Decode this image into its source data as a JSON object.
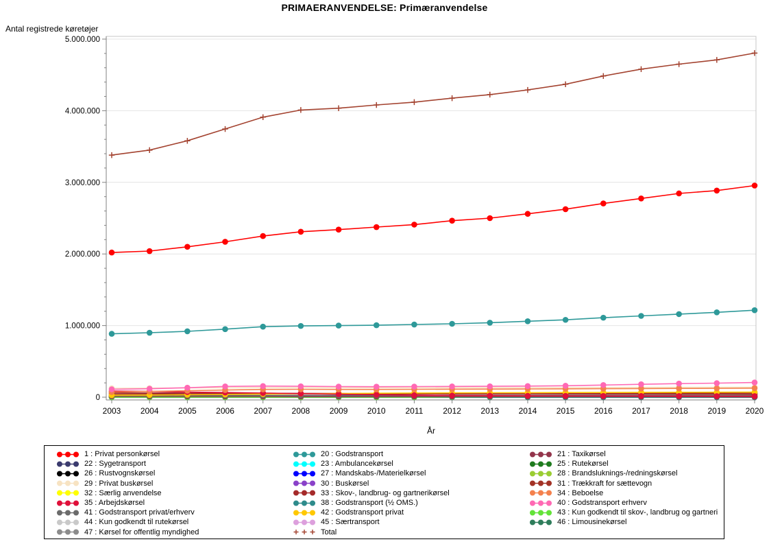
{
  "window": {
    "title": "PRIMAERANVENDELSE: Primæranvendelse"
  },
  "chart_data": {
    "type": "line",
    "title": "PRIMAERANVENDELSE: Primæranvendelse",
    "xlabel": "År",
    "ylabel": "Antal registrede køretøjer",
    "x": [
      2003,
      2004,
      2005,
      2006,
      2007,
      2008,
      2009,
      2010,
      2011,
      2012,
      2013,
      2014,
      2015,
      2016,
      2017,
      2018,
      2019,
      2020
    ],
    "x_tick_labels": [
      "2003",
      "2004",
      "2005",
      "2006",
      "2007",
      "2008",
      "2009",
      "2010",
      "2011",
      "2012",
      "2013",
      "2014",
      "2015",
      "2016",
      "2017",
      "2018",
      "2019",
      "2020"
    ],
    "ylim": [
      0,
      5000000
    ],
    "y_ticks": [
      {
        "value": 0,
        "label": "0"
      },
      {
        "value": 1000000,
        "label": "1.000.000"
      },
      {
        "value": 2000000,
        "label": "2.000.000"
      },
      {
        "value": 3000000,
        "label": "3.000.000"
      },
      {
        "value": 4000000,
        "label": "4.000.000"
      },
      {
        "value": 5000000,
        "label": "5.000.000"
      }
    ],
    "grid": "horizontal-major",
    "legend_position": "bottom-box",
    "series": [
      {
        "id": "22",
        "legend": "22 : Sygetransport",
        "color": "#3B3B6E",
        "marker": "dot",
        "values": [
          2000,
          2000,
          2000,
          2000,
          2000,
          2000,
          2000,
          2000,
          2000,
          2000,
          2000,
          2000,
          2000,
          2000,
          2000,
          2000,
          2000,
          2000
        ]
      },
      {
        "id": "26",
        "legend": "26 : Rustvognskørsel",
        "color": "#000000",
        "marker": "dot",
        "values": [
          1000,
          1000,
          1000,
          1000,
          1000,
          1000,
          1000,
          1000,
          1000,
          1000,
          1000,
          1000,
          1000,
          1000,
          1000,
          1000,
          1000,
          1000
        ]
      },
      {
        "id": "44",
        "legend": "44 : Kun godkendt til rutekørsel",
        "color": "#C9C9C9",
        "marker": "dot",
        "values": [
          2000,
          2000,
          2000,
          2000,
          2000,
          2000,
          2000,
          2000,
          2000,
          2000,
          2000,
          2000,
          2000,
          2000,
          2000,
          2000,
          2000,
          2000
        ]
      },
      {
        "id": "46",
        "legend": "46 : Limousinekørsel",
        "color": "#2E7D5B",
        "marker": "dot",
        "values": [
          1000,
          1000,
          1000,
          1000,
          1000,
          1000,
          1000,
          1000,
          1000,
          1000,
          1000,
          1000,
          1000,
          1000,
          1000,
          1000,
          1000,
          1000
        ]
      },
      {
        "id": "23",
        "legend": "23 : Ambulancekørsel",
        "color": "#00FFFF",
        "marker": "dot",
        "values": [
          3000,
          3000,
          3000,
          3000,
          3000,
          3000,
          3000,
          3000,
          3000,
          3000,
          3000,
          3000,
          3000,
          3000,
          3000,
          3000,
          3000,
          3000
        ]
      },
      {
        "id": "47",
        "legend": "47 : Kørsel for offentlig myndighed",
        "color": "#8C8C8C",
        "marker": "dot",
        "values": [
          3000,
          3000,
          3000,
          3000,
          3000,
          3000,
          3000,
          3000,
          3000,
          3000,
          3000,
          3000,
          3000,
          3000,
          3000,
          3000,
          3000,
          3000
        ]
      },
      {
        "id": "32",
        "legend": "32 : Særlig anvendelse",
        "color": "#FFFF00",
        "marker": "dot",
        "values": [
          5000,
          5000,
          5000,
          5000,
          5000,
          5000,
          5000,
          5000,
          5000,
          5000,
          5000,
          5000,
          5000,
          5000,
          5000,
          5000,
          5000,
          5000
        ]
      },
      {
        "id": "28",
        "legend": "28 : Brandsluknings-/redningskørsel",
        "color": "#9ACD32",
        "marker": "dot",
        "values": [
          6000,
          6000,
          6000,
          6000,
          6000,
          6000,
          6000,
          6000,
          6000,
          6000,
          6000,
          6000,
          6000,
          6000,
          6000,
          6000,
          6000,
          6000
        ]
      },
      {
        "id": "25",
        "legend": "25 : Rutekørsel",
        "color": "#1E7B1E",
        "marker": "dot",
        "values": [
          9000,
          9000,
          9000,
          9000,
          9000,
          9000,
          8000,
          8000,
          8000,
          8000,
          8000,
          8000,
          8000,
          8000,
          8000,
          8000,
          8000,
          8000
        ]
      },
      {
        "id": "27",
        "legend": "27 : Mandskabs-/Materielkørsel",
        "color": "#0000FF",
        "marker": "dot",
        "values": [
          8000,
          8000,
          8000,
          8000,
          8000,
          8000,
          8000,
          8000,
          8000,
          8000,
          8000,
          8000,
          8000,
          8000,
          8000,
          8000,
          8000,
          8000
        ]
      },
      {
        "id": "45",
        "legend": "45 : Særtransport",
        "color": "#DDA0DD",
        "marker": "dot",
        "values": [
          8000,
          8000,
          8000,
          8000,
          9000,
          9000,
          9000,
          9000,
          9000,
          9000,
          9000,
          9000,
          9000,
          10000,
          10000,
          10000,
          10000,
          10000
        ]
      },
      {
        "id": "30",
        "legend": "30 : Buskørsel",
        "color": "#8A41C9",
        "marker": "dot",
        "values": [
          14000,
          14000,
          14000,
          14000,
          14000,
          14000,
          13000,
          13000,
          13000,
          13000,
          13000,
          13000,
          13000,
          13000,
          13000,
          13000,
          13000,
          13000
        ]
      },
      {
        "id": "38",
        "legend": "38 : Godstransport (½ OMS.)",
        "color": "#2E8B8B",
        "marker": "dot",
        "values": [
          5000,
          4000,
          4000,
          3000,
          3000,
          3000,
          2000,
          2000,
          2000,
          2000,
          2000,
          2000,
          2000,
          2000,
          2000,
          2000,
          2000,
          2000
        ]
      },
      {
        "id": "43",
        "legend": "43 : Kun godkendt til skov-, landbrug og gartneri",
        "color": "#63E339",
        "marker": "dot",
        "values": [
          0,
          0,
          0,
          0,
          0,
          0,
          0,
          0,
          0,
          5000,
          8000,
          10000,
          11000,
          12000,
          13000,
          14000,
          15000,
          16000
        ]
      },
      {
        "id": "21",
        "legend": "21 : Taxikørsel",
        "color": "#93354B",
        "marker": "dot",
        "values": [
          12000,
          12000,
          12000,
          12000,
          12000,
          11000,
          11000,
          11000,
          11000,
          11000,
          11000,
          10000,
          10000,
          10000,
          9000,
          8000,
          7000,
          6000
        ]
      },
      {
        "id": "41",
        "legend": "41 : Godstransport privat/erhverv",
        "color": "#6B6B6B",
        "marker": "dot",
        "values": [
          22000,
          23000,
          24000,
          25000,
          26000,
          26000,
          26000,
          26000,
          26000,
          27000,
          27000,
          27000,
          28000,
          28000,
          28000,
          29000,
          29000,
          30000
        ]
      },
      {
        "id": "31",
        "legend": "31 : Trækkraft for sættevogn",
        "color": "#A33226",
        "marker": "dot",
        "values": [
          42000,
          44000,
          47000,
          50000,
          52000,
          50000,
          46000,
          45000,
          45000,
          46000,
          47000,
          48000,
          50000,
          52000,
          54000,
          55000,
          56000,
          57000
        ]
      },
      {
        "id": "33",
        "legend": "33 : Skov-, landbrug- og gartnerikørsel",
        "color": "#A52A2A",
        "marker": "dot",
        "values": [
          60000,
          58000,
          57000,
          56000,
          55000,
          54000,
          52000,
          51000,
          50000,
          49000,
          48000,
          47000,
          47000,
          46000,
          46000,
          45000,
          45000,
          44000
        ]
      },
      {
        "id": "42",
        "legend": "42 : Godstransport privat",
        "color": "#FFC800",
        "marker": "dot",
        "values": [
          28000,
          30000,
          34000,
          38000,
          44000,
          48000,
          52000,
          56000,
          58000,
          60000,
          62000,
          63000,
          65000,
          66000,
          68000,
          69000,
          70000,
          71000
        ]
      },
      {
        "id": "35",
        "legend": "35 : Arbejdskørsel",
        "color": "#E0103A",
        "marker": "dot",
        "values": [
          85000,
          80000,
          72000,
          65000,
          58000,
          50000,
          42000,
          35000,
          28000,
          24000,
          22000,
          20000,
          19000,
          18000,
          17000,
          16000,
          15000,
          15000
        ]
      },
      {
        "id": "29",
        "legend": "29 : Privat buskørsel",
        "color": "#F7E3C2",
        "marker": "dot",
        "values": [
          125000,
          127000,
          129000,
          131000,
          133000,
          133000,
          132000,
          132000,
          132000,
          133000,
          133000,
          134000,
          135000,
          136000,
          137000,
          138000,
          139000,
          140000
        ]
      },
      {
        "id": "34",
        "legend": "34 : Beboelse",
        "color": "#F4814D",
        "marker": "dot",
        "values": [
          72000,
          80000,
          90000,
          100000,
          108000,
          110000,
          108000,
          108000,
          110000,
          112000,
          113000,
          115000,
          117000,
          119000,
          121000,
          123000,
          124000,
          126000
        ]
      },
      {
        "id": "40",
        "legend": "40 : Godstransport erhverv",
        "color": "#FF69B4",
        "marker": "dot",
        "values": [
          110000,
          118000,
          132000,
          150000,
          155000,
          152000,
          148000,
          147000,
          148000,
          150000,
          152000,
          155000,
          160000,
          170000,
          180000,
          190000,
          196000,
          205000
        ]
      },
      {
        "id": "20",
        "legend": "20 : Godstransport",
        "color": "#2E9999",
        "marker": "dot",
        "values": [
          885000,
          900000,
          920000,
          950000,
          985000,
          995000,
          1000000,
          1005000,
          1015000,
          1025000,
          1040000,
          1060000,
          1080000,
          1110000,
          1135000,
          1160000,
          1185000,
          1215000
        ]
      },
      {
        "id": "1",
        "legend": "1 : Privat personkørsel",
        "color": "#FF0000",
        "marker": "dot",
        "values": [
          2020000,
          2040000,
          2100000,
          2170000,
          2250000,
          2310000,
          2340000,
          2375000,
          2410000,
          2465000,
          2500000,
          2560000,
          2625000,
          2705000,
          2775000,
          2845000,
          2885000,
          2955000
        ]
      },
      {
        "id": "total",
        "legend": "Total",
        "color": "#A3422F",
        "marker": "plus",
        "values": [
          3380000,
          3450000,
          3580000,
          3745000,
          3910000,
          4010000,
          4035000,
          4080000,
          4120000,
          4175000,
          4225000,
          4290000,
          4370000,
          4485000,
          4580000,
          4650000,
          4710000,
          4805000
        ]
      }
    ],
    "legend_columns": [
      [
        "1",
        "22",
        "26",
        "29",
        "32",
        "35",
        "41",
        "44",
        "47"
      ],
      [
        "20",
        "23",
        "27",
        "30",
        "33",
        "38",
        "42",
        "45",
        "total"
      ],
      [
        "21",
        "25",
        "28",
        "31",
        "34",
        "40",
        "43",
        "46"
      ]
    ]
  },
  "colors": {
    "frame": "#C7C7C7",
    "gridline": "#E4E4E4",
    "axis": "#808080",
    "text": "#000000",
    "background": "#FFFFFF"
  }
}
